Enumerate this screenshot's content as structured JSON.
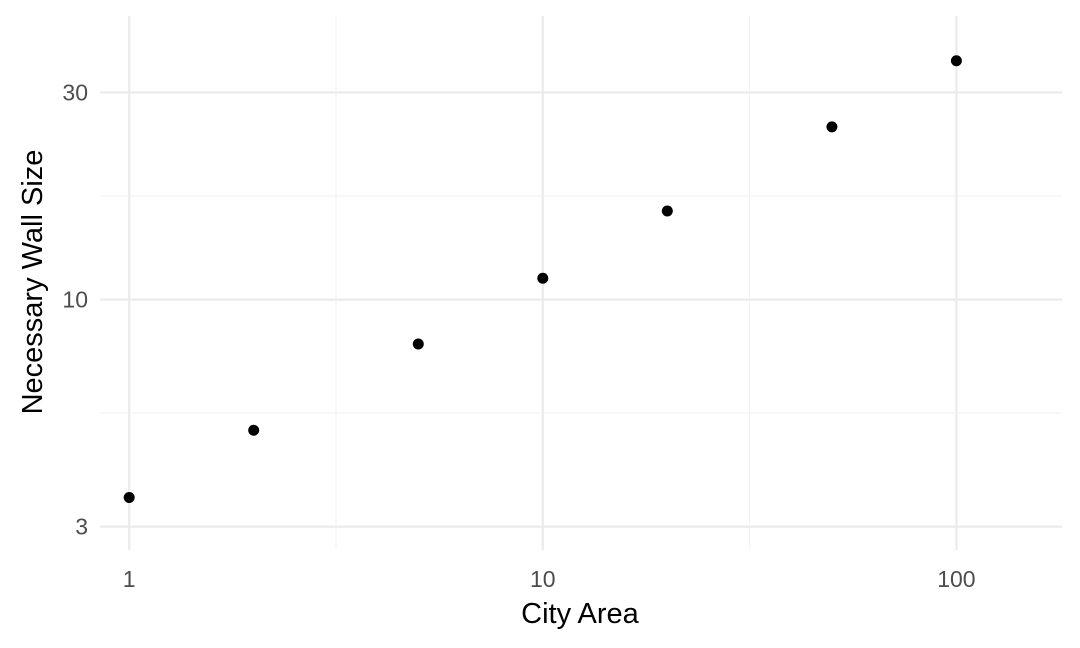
{
  "chart_data": {
    "type": "scatter",
    "title": "",
    "xlabel": "City Area",
    "ylabel": "Necessary Wall Size",
    "x_scale": "log10",
    "y_scale": "log10",
    "xlim": [
      0.85,
      180
    ],
    "ylim": [
      2.65,
      45
    ],
    "x_ticks": [
      1,
      10,
      100
    ],
    "x_tick_labels": [
      "1",
      "10",
      "100"
    ],
    "y_ticks": [
      3,
      10,
      30
    ],
    "y_tick_labels": [
      "3",
      "10",
      "30"
    ],
    "grid": true,
    "legend": "none",
    "point_color": "#000000",
    "points": [
      {
        "x": 1,
        "y": 3.5
      },
      {
        "x": 2,
        "y": 5.0
      },
      {
        "x": 5,
        "y": 7.9
      },
      {
        "x": 10,
        "y": 11.2
      },
      {
        "x": 20,
        "y": 16.0
      },
      {
        "x": 50,
        "y": 25.0
      },
      {
        "x": 100,
        "y": 35.5
      }
    ]
  }
}
